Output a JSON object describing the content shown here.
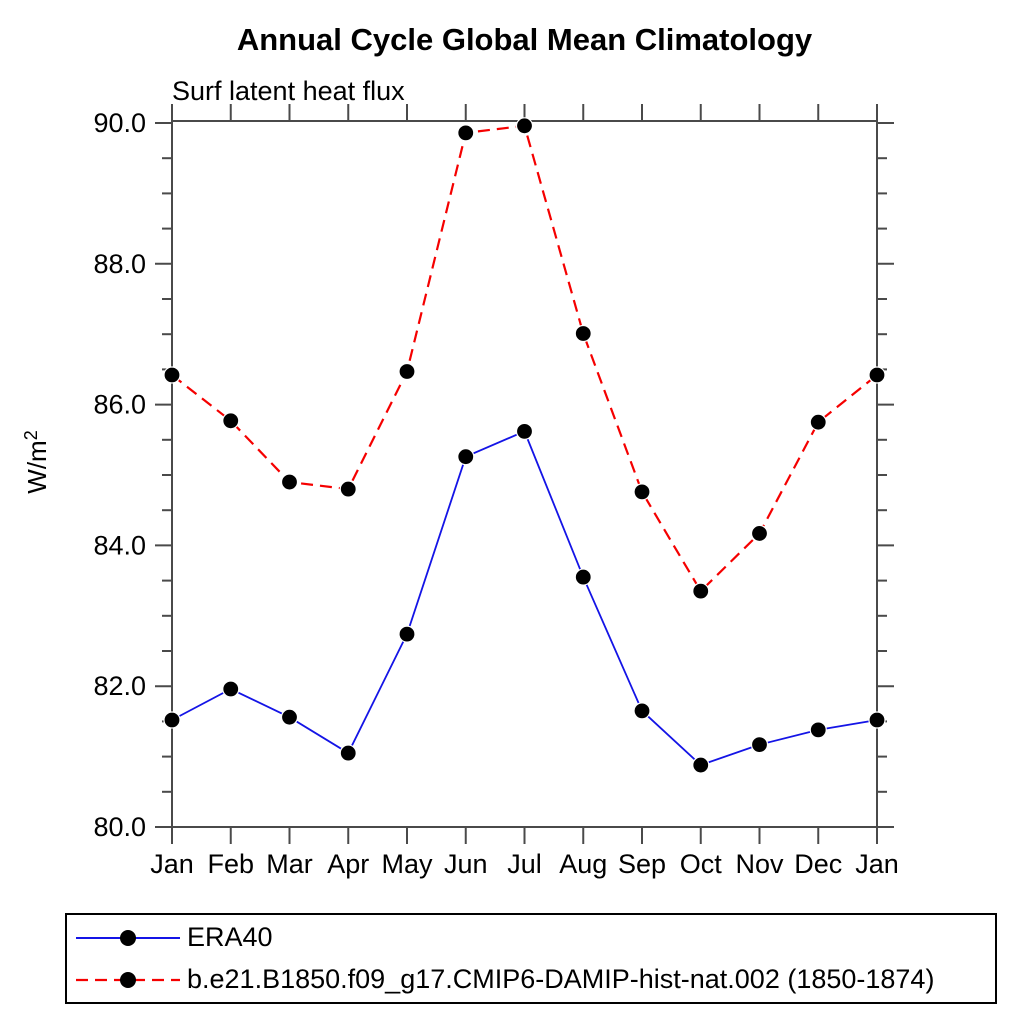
{
  "chart_data": {
    "type": "line",
    "title": "Annual Cycle Global Mean Climatology",
    "subtitle": "Surf latent heat flux",
    "ylabel_base": "W/m",
    "ylabel_exp": "2",
    "categories": [
      "Jan",
      "Feb",
      "Mar",
      "Apr",
      "May",
      "Jun",
      "Jul",
      "Aug",
      "Sep",
      "Oct",
      "Nov",
      "Dec",
      "Jan"
    ],
    "ylim": [
      80,
      90
    ],
    "ytick_labels": [
      "80.0",
      "82.0",
      "84.0",
      "86.0",
      "88.0",
      "90.0"
    ],
    "ytick_minor_step": 0.5,
    "grid": false,
    "legend_position": "bottom-left-box",
    "axis_color": "#4a4a4a",
    "tick_label_color": "#000000",
    "series": [
      {
        "name": "ERA40",
        "color": "#1414e6",
        "style": "solid",
        "marker": "filled-circle",
        "marker_color": "#000000",
        "values": [
          81.52,
          81.96,
          81.56,
          81.05,
          82.74,
          85.26,
          85.62,
          83.55,
          81.65,
          80.88,
          81.17,
          81.38,
          81.52
        ]
      },
      {
        "name": "b.e21.B1850.f09_g17.CMIP6-DAMIP-hist-nat.002 (1850-1874)",
        "color": "#f50000",
        "style": "dashed",
        "marker": "filled-circle",
        "marker_color": "#000000",
        "values": [
          86.42,
          85.77,
          84.9,
          84.8,
          86.47,
          89.86,
          89.96,
          87.01,
          84.76,
          83.35,
          84.17,
          85.75,
          86.42
        ]
      }
    ]
  }
}
